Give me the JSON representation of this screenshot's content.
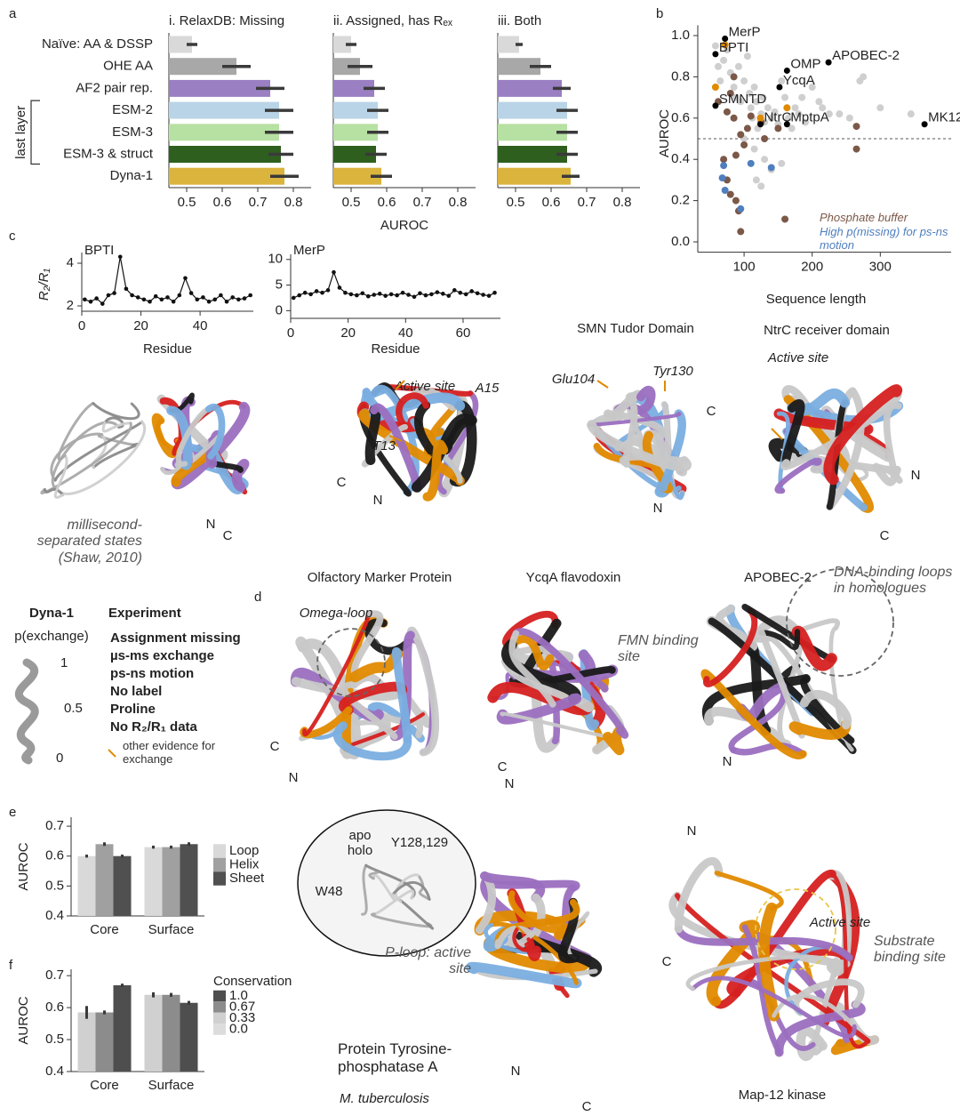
{
  "panel_labels": [
    "a",
    "b",
    "c",
    "d",
    "e",
    "f"
  ],
  "chart_data": [
    {
      "type": "hbar_panels",
      "categories": [
        "Naïve: AA & DSSP",
        "OHE AA",
        "AF2 pair rep.",
        "ESM-2",
        "ESM-3",
        "ESM-3 & struct",
        "Dyna-1"
      ],
      "colors": [
        "#d9d9d9",
        "#a8a8a8",
        "#9a7fc2",
        "#b9d4e6",
        "#b7e1a3",
        "#2f5f1f",
        "#dbb43e"
      ],
      "group_label": "last layer",
      "xlim": [
        0.45,
        0.85
      ],
      "xticks": [
        0.5,
        0.6,
        0.7,
        0.8
      ],
      "x_label": "AUROC",
      "panels": [
        {
          "title": "i. RelaxDB: Missing",
          "values": [
            0.515,
            0.64,
            0.735,
            0.76,
            0.76,
            0.765,
            0.775
          ],
          "errors": [
            0.015,
            0.04,
            0.04,
            0.04,
            0.04,
            0.035,
            0.04
          ]
        },
        {
          "title": "ii. Assigned, has Rₑₓ",
          "values": [
            0.5,
            0.525,
            0.565,
            0.575,
            0.575,
            0.57,
            0.585
          ],
          "errors": [
            0.015,
            0.035,
            0.03,
            0.03,
            0.03,
            0.03,
            0.03
          ]
        },
        {
          "title": "iii. Both",
          "values": [
            0.51,
            0.57,
            0.63,
            0.645,
            0.645,
            0.645,
            0.655
          ],
          "errors": [
            0.01,
            0.03,
            0.025,
            0.03,
            0.03,
            0.03,
            0.025
          ]
        }
      ]
    },
    {
      "type": "scatter",
      "x_label": "Sequence length",
      "y_label": "AUROC",
      "xlim": [
        32,
        404
      ],
      "xticks": [
        100,
        200,
        300
      ],
      "ylim": [
        -0.05,
        1.05
      ],
      "yticks": [
        {
          "value": 0,
          "label": "0.0"
        },
        0.2,
        0.4,
        0.6,
        0.8,
        {
          "value": 1,
          "label": "1.0"
        }
      ],
      "hline": 0.5,
      "series": [
        {
          "color": "#cfcfcf",
          "x": [
            58,
            62,
            65,
            70,
            75,
            80,
            85,
            88,
            92,
            95,
            100,
            105,
            108,
            110,
            112,
            115,
            118,
            120,
            125,
            128,
            130,
            135,
            140,
            145,
            150,
            155,
            160,
            165,
            170,
            175,
            180,
            185,
            190,
            200,
            210,
            215,
            225,
            240,
            255,
            270,
            275,
            300,
            345,
            115,
            130,
            140,
            118,
            125,
            155,
            100
          ],
          "y": [
            0.95,
            0.85,
            0.78,
            0.88,
            0.93,
            0.82,
            0.75,
            0.7,
            0.85,
            0.68,
            0.78,
            0.9,
            0.72,
            0.65,
            0.6,
            0.75,
            0.68,
            0.55,
            0.62,
            0.7,
            0.58,
            0.65,
            0.6,
            0.63,
            0.57,
            0.78,
            0.7,
            0.6,
            0.55,
            0.65,
            0.62,
            0.7,
            0.58,
            0.75,
            0.68,
            0.65,
            0.62,
            0.62,
            0.6,
            0.78,
            0.8,
            0.65,
            0.62,
            0.45,
            0.4,
            0.35,
            0.3,
            0.27,
            0.38,
            0.5
          ]
        },
        {
          "name": "Phosphate buffer",
          "color": "#7b5848",
          "x": [
            62,
            75,
            80,
            85,
            95,
            100,
            105,
            110,
            125,
            130,
            88,
            70,
            75,
            80,
            88,
            92,
            95,
            160,
            265,
            265,
            85,
            150
          ],
          "y": [
            0.68,
            0.63,
            0.72,
            0.6,
            0.52,
            0.47,
            0.55,
            0.61,
            0.58,
            0.5,
            0.42,
            0.4,
            0.3,
            0.23,
            0.2,
            0.15,
            0.05,
            0.11,
            0.45,
            0.56,
            0.8,
            0.55
          ]
        },
        {
          "name": "High p(missing) for ps-ns motion",
          "color": "#4f7fbe",
          "x": [
            70,
            68,
            72,
            95,
            110,
            140
          ],
          "y": [
            0.37,
            0.31,
            0.25,
            0.16,
            0.38,
            0.36
          ]
        },
        {
          "color": "#e08a00",
          "x": [
            72,
            58,
            124,
            163
          ],
          "y": [
            0.955,
            0.75,
            0.6,
            0.65
          ]
        },
        {
          "color": "#000000",
          "x": [
            72,
            58,
            224,
            163,
            152,
            58,
            124,
            163,
            365
          ],
          "y": [
            0.985,
            0.91,
            0.87,
            0.83,
            0.75,
            0.66,
            0.57,
            0.57,
            0.57
          ],
          "labels": [
            "MerP",
            "BPTI",
            "APOBEC-2",
            "OMP",
            "YcqA",
            "SMNTD",
            "NtrC",
            "MptpA",
            "MK12"
          ]
        }
      ]
    },
    {
      "type": "line",
      "title": "BPTI",
      "y_label": "R₂/R₁",
      "x_label": "Residue",
      "xlim": [
        0,
        58
      ],
      "xticks": [
        0,
        20,
        40
      ],
      "ylim": [
        1.75,
        4.5
      ],
      "yticks": [
        2,
        4
      ],
      "color": "#111111",
      "x": [
        1,
        3,
        5,
        7,
        9,
        11,
        13,
        15,
        17,
        19,
        21,
        23,
        25,
        27,
        29,
        31,
        33,
        35,
        37,
        39,
        41,
        43,
        45,
        47,
        49,
        51,
        53,
        55,
        57
      ],
      "values": [
        2.3,
        2.2,
        2.35,
        2.1,
        2.5,
        2.6,
        4.3,
        2.8,
        2.5,
        2.4,
        2.3,
        2.2,
        2.45,
        2.3,
        2.4,
        2.2,
        2.5,
        3.3,
        2.6,
        2.3,
        2.4,
        2.2,
        2.3,
        2.5,
        2.2,
        2.4,
        2.3,
        2.35,
        2.5
      ]
    },
    {
      "type": "line",
      "title": "MerP",
      "x_label": "Residue",
      "xlim": [
        0,
        73
      ],
      "xticks": [
        0,
        20,
        40,
        60
      ],
      "ylim": [
        -1.5,
        11
      ],
      "yticks": [
        0,
        5,
        10
      ],
      "color": "#111111",
      "x": [
        1,
        3,
        5,
        7,
        9,
        11,
        13,
        15,
        17,
        19,
        21,
        23,
        25,
        27,
        29,
        31,
        33,
        35,
        37,
        39,
        41,
        43,
        45,
        47,
        49,
        51,
        53,
        55,
        57,
        59,
        61,
        63,
        65,
        67,
        69,
        71
      ],
      "values": [
        2.5,
        3,
        3.5,
        3.2,
        3.8,
        3.5,
        4,
        7.5,
        4.5,
        3.5,
        3.2,
        3,
        3.4,
        2.8,
        3.1,
        3.3,
        2.9,
        3.2,
        3,
        3.5,
        3.1,
        2.7,
        3.4,
        3,
        3.2,
        3.6,
        3.3,
        2.9,
        4,
        3.5,
        3.2,
        3.8,
        3.4,
        3.1,
        2.9,
        3.5
      ]
    },
    {
      "type": "grouped_bar",
      "y_label": "AUROC",
      "categories": [
        "Core",
        "Surface"
      ],
      "ylim": [
        0.4,
        0.73
      ],
      "yticks": [
        0.4,
        0.5,
        0.6,
        0.7
      ],
      "series": [
        {
          "name": "Loop",
          "color": "#d9d9d9",
          "values": [
            0.6,
            0.63
          ],
          "errors": [
            0.005,
            0.005
          ]
        },
        {
          "name": "Helix",
          "color": "#a0a0a0",
          "values": [
            0.64,
            0.63
          ],
          "errors": [
            0.006,
            0.005
          ]
        },
        {
          "name": "Sheet",
          "color": "#505050",
          "values": [
            0.6,
            0.64
          ],
          "errors": [
            0.005,
            0.006
          ]
        }
      ]
    },
    {
      "type": "grouped_bar",
      "y_label": "AUROC",
      "legend_title": "Conservation",
      "categories": [
        "Core",
        "Surface"
      ],
      "ylim": [
        0.4,
        0.72
      ],
      "yticks": [
        0.4,
        0.5,
        0.6,
        0.7
      ],
      "series": [
        {
          "name": "0.0",
          "color": "#dcdcdc",
          "values": [
            null,
            null
          ],
          "errors": [
            null,
            null
          ]
        },
        {
          "name": "0.33",
          "color": "#d0d0d0",
          "values": [
            0.585,
            0.64
          ],
          "errors": [
            0.02,
            0.008
          ]
        },
        {
          "name": "0.67",
          "color": "#8c8c8c",
          "values": [
            0.585,
            0.64
          ],
          "errors": [
            0.006,
            0.006
          ]
        },
        {
          "name": "1.0",
          "color": "#4e4e4e",
          "values": [
            0.67,
            0.615
          ],
          "errors": [
            0.005,
            0.006
          ]
        }
      ]
    }
  ],
  "structures": [
    {
      "labels": [
        "millisecond-separated states (Shaw, 2010)"
      ]
    },
    {
      "labels": [
        "N",
        "C"
      ]
    },
    {
      "labels": [
        "Active site",
        "A15",
        "T13",
        "C",
        "N"
      ]
    },
    {
      "title": "SMN Tudor Domain",
      "labels": [
        "Glu104",
        "Tyr130",
        "C",
        "N"
      ]
    },
    {
      "title": "NtrC receiver domain",
      "labels": [
        "Active site",
        "N",
        "C"
      ]
    },
    {
      "title": "Olfactory Marker Protein",
      "labels": [
        "Omega-loop",
        "C",
        "N"
      ]
    },
    {
      "title": "YcqA flavodoxin",
      "labels": [
        "FMN binding site",
        "C",
        "N"
      ]
    },
    {
      "title": "APOBEC-2",
      "labels": [
        "DNA-binding loops in homologues",
        "N"
      ]
    },
    {
      "labels": [
        "apo",
        "holo",
        "Y128,129",
        "W48"
      ]
    },
    {
      "title": "Protein Tyrosine-phosphatase A",
      "subtitle": "M. tuberculosis",
      "labels": [
        "P-loop: active site",
        "N",
        "C"
      ]
    },
    {
      "title": "Map-12 kinase",
      "labels": [
        "N",
        "C",
        "Active site",
        "Substrate binding site"
      ]
    }
  ],
  "legend": {
    "dyna_title": "Dyna-1",
    "dyna_subtitle": "p(exchange)",
    "scale_labels": [
      1,
      0.5,
      0
    ],
    "experiment_title": "Experiment",
    "items": [
      {
        "name": "Assignment missing",
        "color": "#d62020"
      },
      {
        "name": "µs-ms exchange",
        "color": "#e08a00"
      },
      {
        "name": "ps-ns motion",
        "color": "#7aaee0"
      },
      {
        "name": "No label",
        "color": "#c4c4c4"
      },
      {
        "name": "Proline",
        "color": "#9b6fc0"
      },
      {
        "name": "No R₂/R₁ data",
        "color": "#1a1a1a"
      }
    ],
    "arrow_note": "other evidence for exchange"
  }
}
